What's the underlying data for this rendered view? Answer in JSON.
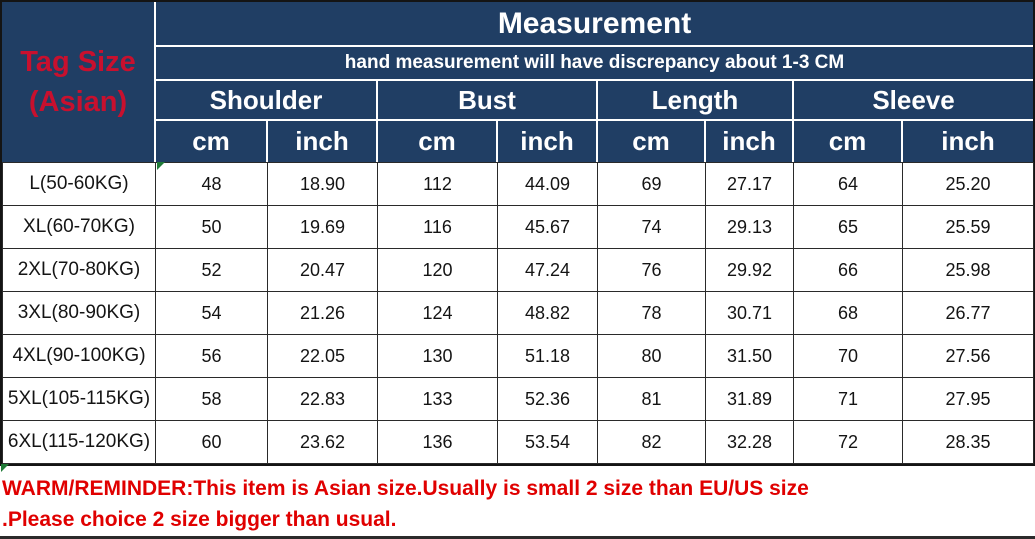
{
  "header": {
    "tag_size_line1": "Tag Size",
    "tag_size_line2": "(Asian)",
    "title": "Measurement",
    "subtitle": "hand measurement will have discrepancy about 1-3 CM",
    "groups": [
      {
        "label": "Shoulder"
      },
      {
        "label": "Bust"
      },
      {
        "label": "Length"
      },
      {
        "label": "Sleeve"
      }
    ],
    "unit_cm": "cm",
    "unit_inch": "inch"
  },
  "rows": [
    {
      "size": "L(50-60KG)",
      "values": [
        "48",
        "18.90",
        "112",
        "44.09",
        "69",
        "27.17",
        "64",
        "25.20"
      ]
    },
    {
      "size": "XL(60-70KG)",
      "values": [
        "50",
        "19.69",
        "116",
        "45.67",
        "74",
        "29.13",
        "65",
        "25.59"
      ]
    },
    {
      "size": "2XL(70-80KG)",
      "values": [
        "52",
        "20.47",
        "120",
        "47.24",
        "76",
        "29.92",
        "66",
        "25.98"
      ]
    },
    {
      "size": "3XL(80-90KG)",
      "values": [
        "54",
        "21.26",
        "124",
        "48.82",
        "78",
        "30.71",
        "68",
        "26.77"
      ]
    },
    {
      "size": "4XL(90-100KG)",
      "values": [
        "56",
        "22.05",
        "130",
        "51.18",
        "80",
        "31.50",
        "70",
        "27.56"
      ]
    },
    {
      "size": "5XL(105-115KG)",
      "values": [
        "58",
        "22.83",
        "133",
        "52.36",
        "81",
        "31.89",
        "71",
        "27.95"
      ]
    },
    {
      "size": "6XL(115-120KG)",
      "values": [
        "60",
        "23.62",
        "136",
        "53.54",
        "82",
        "32.28",
        "72",
        "28.35"
      ]
    }
  ],
  "warning": {
    "line1": "WARM/REMINDER:This item is Asian size.Usually is small 2 size than EU/US size",
    "line2": ".Please choice 2 size bigger than usual."
  },
  "colors": {
    "header_bg": "#203e64",
    "tag_red": "#c8102e",
    "warning_red": "#e00000",
    "marker_green": "#1f7a36"
  },
  "chart_data": {
    "type": "table",
    "title": "Measurement",
    "note": "hand measurement will have discrepancy about 1-3 CM",
    "row_header": "Tag Size (Asian)",
    "column_groups": [
      "Shoulder",
      "Bust",
      "Length",
      "Sleeve"
    ],
    "columns": [
      "Tag Size (Asian)",
      "Shoulder cm",
      "Shoulder inch",
      "Bust cm",
      "Bust inch",
      "Length cm",
      "Length inch",
      "Sleeve cm",
      "Sleeve inch"
    ],
    "rows": [
      [
        "L(50-60KG)",
        48,
        18.9,
        112,
        44.09,
        69,
        27.17,
        64,
        25.2
      ],
      [
        "XL(60-70KG)",
        50,
        19.69,
        116,
        45.67,
        74,
        29.13,
        65,
        25.59
      ],
      [
        "2XL(70-80KG)",
        52,
        20.47,
        120,
        47.24,
        76,
        29.92,
        66,
        25.98
      ],
      [
        "3XL(80-90KG)",
        54,
        21.26,
        124,
        48.82,
        78,
        30.71,
        68,
        26.77
      ],
      [
        "4XL(90-100KG)",
        56,
        22.05,
        130,
        51.18,
        80,
        31.5,
        70,
        27.56
      ],
      [
        "5XL(105-115KG)",
        58,
        22.83,
        133,
        52.36,
        81,
        31.89,
        71,
        27.95
      ],
      [
        "6XL(115-120KG)",
        60,
        23.62,
        136,
        53.54,
        82,
        32.28,
        72,
        28.35
      ]
    ],
    "warning": "WARM/REMINDER:This item is Asian size.Usually is small 2 size than EU/US size.Please choice 2 size bigger than usual."
  }
}
